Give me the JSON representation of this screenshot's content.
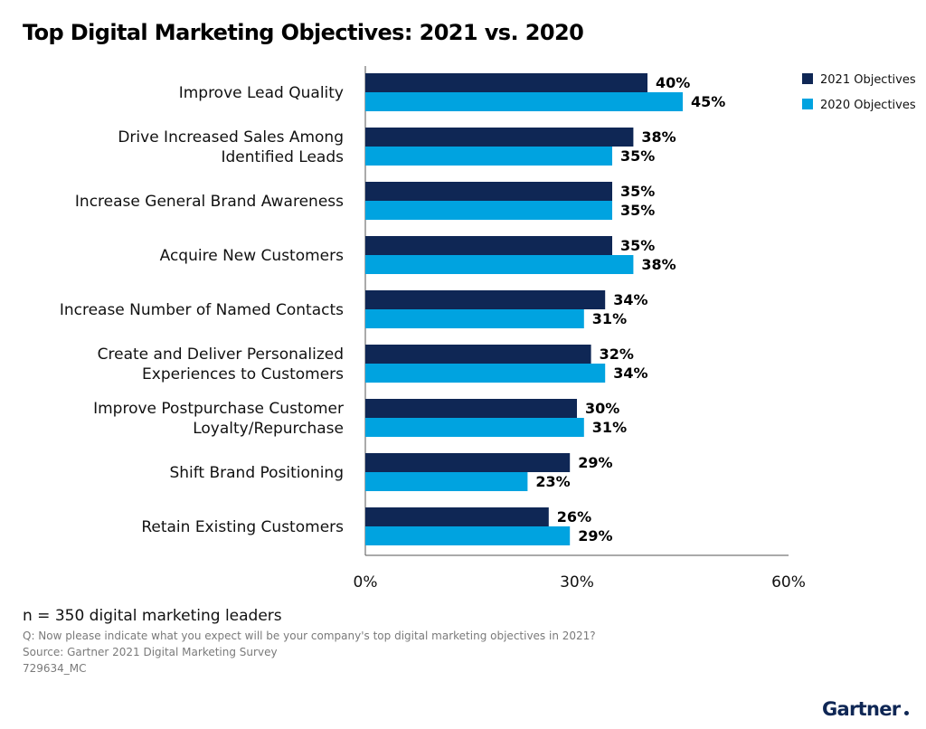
{
  "colors": {
    "series_2021": "#0f2755",
    "series_2020": "#00a3e0",
    "axis": "#555555"
  },
  "footnotes": {
    "n": "n = 350 digital marketing leaders",
    "question": "Q: Now please indicate what you expect will be your company's top digital marketing objectives in 2021?",
    "source": "Source: Gartner 2021 Digital Marketing Survey",
    "code": "729634_MC"
  },
  "brand": {
    "logo_text": "Gartner"
  },
  "chart_data": {
    "type": "bar",
    "orientation": "horizontal",
    "title": "Top Digital Marketing Objectives: 2021 vs. 2020",
    "xlabel": "",
    "ylabel": "",
    "xlim": [
      0,
      60
    ],
    "x_ticks": [
      "0%",
      "30%",
      "60%"
    ],
    "legend_position": "top-right",
    "grid": false,
    "categories": [
      [
        "Improve Lead Quality"
      ],
      [
        "Drive Increased Sales Among",
        "Identified Leads"
      ],
      [
        "Increase General Brand Awareness"
      ],
      [
        "Acquire New Customers"
      ],
      [
        "Increase Number of Named Contacts"
      ],
      [
        "Create and Deliver Personalized",
        "Experiences to Customers"
      ],
      [
        "Improve Postpurchase Customer",
        "Loyalty/Repurchase"
      ],
      [
        "Shift Brand Positioning"
      ],
      [
        "Retain Existing Customers"
      ]
    ],
    "series": [
      {
        "name": "2021 Objectives",
        "values": [
          40,
          38,
          35,
          35,
          34,
          32,
          30,
          29,
          26
        ]
      },
      {
        "name": "2020 Objectives",
        "values": [
          45,
          35,
          35,
          38,
          31,
          34,
          31,
          23,
          29
        ]
      }
    ],
    "value_suffix": "%"
  }
}
